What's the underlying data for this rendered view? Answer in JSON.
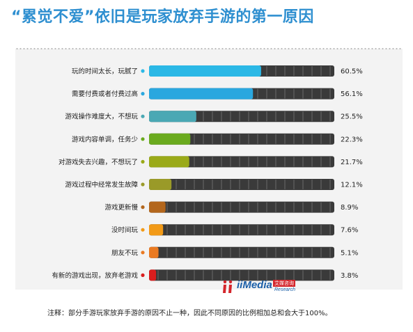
{
  "title": "“累觉不爱”依旧是玩家放弃手游的第一原因",
  "note": "注释：部分手游玩家放弃手游的原因不止一种，因此不同原因的比例相加总和会大于100%。",
  "logo": {
    "word": "iiMedia",
    "cn": "艾媒咨询",
    "en": "Research"
  },
  "colors": {
    "track": "#3a3a3a",
    "divider": "#6a6a6a",
    "title": "#2e8fd0"
  },
  "chart_data": {
    "type": "bar",
    "orientation": "horizontal",
    "categories": [
      "玩的时间太长，玩腻了",
      "需要付费或者付费过高",
      "游戏操作难度大，不想玩",
      "游戏内容单调，任务少",
      "对游戏失去兴趣，不想玩了",
      "游戏过程中经常发生故障",
      "游戏更新慢",
      "没时间玩",
      "朋友不玩",
      "有新的游戏出现，放弃老游戏"
    ],
    "values": [
      60.5,
      56.1,
      25.5,
      22.3,
      21.7,
      12.1,
      8.9,
      7.6,
      5.1,
      3.8
    ],
    "value_labels": [
      "60.5%",
      "56.1%",
      "25.5%",
      "22.3%",
      "21.7%",
      "12.1%",
      "8.9%",
      "7.6%",
      "5.1%",
      "3.8%"
    ],
    "bar_colors": [
      "#2bb8e6",
      "#2aa7df",
      "#4aa8b4",
      "#6aaa1e",
      "#9aaa18",
      "#9a9a28",
      "#b3661c",
      "#f29a17",
      "#ea7a22",
      "#d91e1e"
    ],
    "xlim": [
      0,
      100
    ],
    "grid": false,
    "legend": "none"
  }
}
